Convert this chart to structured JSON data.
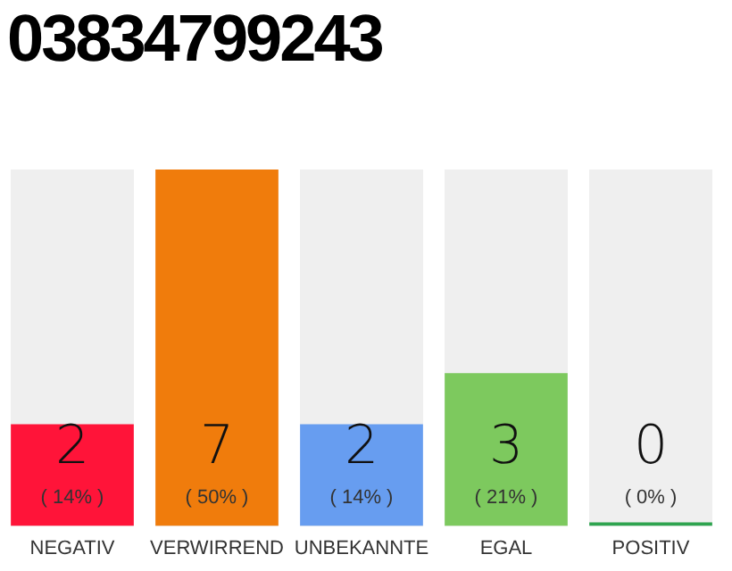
{
  "chart_data": {
    "type": "bar",
    "title": "03834799243",
    "categories": [
      "NEGATIV",
      "VERWIRREND",
      "UNBEKANNTE",
      "EGAL",
      "POSITIV"
    ],
    "values": [
      2,
      7,
      2,
      3,
      0
    ],
    "colors": [
      "#ff1439",
      "#f07c0c",
      "#679df0",
      "#7dc95e",
      "#2ea44f"
    ],
    "value_labels": [
      "2\n( 14% )",
      "7\n( 50% )",
      "2\n( 14% )",
      "3\n( 21% )",
      "0\n( 0% )"
    ],
    "grid": false,
    "legend": false
  }
}
